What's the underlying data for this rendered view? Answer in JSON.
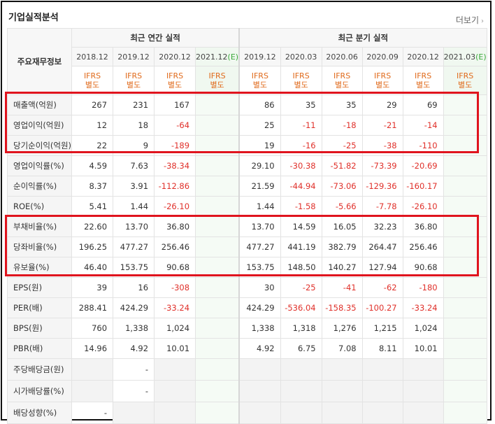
{
  "header": {
    "title": "기업실적분석",
    "more_label": "더보기",
    "more_icon": "chevron-right-icon"
  },
  "table": {
    "row_label_header": "주요재무정보",
    "group_annual": "최근 연간 실적",
    "group_quarterly": "최근 분기 실적",
    "periods": [
      "2018.12",
      "2019.12",
      "2020.12",
      "2021.12(E)",
      "2019.12",
      "2020.03",
      "2020.06",
      "2020.09",
      "2020.12",
      "2021.03(E)"
    ],
    "ifrs_top": "IFRS",
    "ifrs_bottom": "별도",
    "rows": [
      {
        "label": "매출액(억원)",
        "values": [
          "267",
          "231",
          "167",
          "",
          "86",
          "35",
          "35",
          "29",
          "69",
          ""
        ]
      },
      {
        "label": "영업이익(억원)",
        "values": [
          "12",
          "18",
          "-64",
          "",
          "25",
          "-11",
          "-18",
          "-21",
          "-14",
          ""
        ]
      },
      {
        "label": "당기순이익(억원)",
        "values": [
          "22",
          "9",
          "-189",
          "",
          "19",
          "-16",
          "-25",
          "-38",
          "-110",
          ""
        ]
      },
      {
        "label": "영업이익률(%)",
        "values": [
          "4.59",
          "7.63",
          "-38.34",
          "",
          "29.10",
          "-30.38",
          "-51.82",
          "-73.39",
          "-20.69",
          ""
        ]
      },
      {
        "label": "순이익률(%)",
        "values": [
          "8.37",
          "3.91",
          "-112.86",
          "",
          "21.59",
          "-44.94",
          "-73.06",
          "-129.36",
          "-160.17",
          ""
        ]
      },
      {
        "label": "ROE(%)",
        "values": [
          "5.41",
          "1.44",
          "-26.10",
          "",
          "1.44",
          "-1.58",
          "-5.66",
          "-7.78",
          "-26.10",
          ""
        ]
      },
      {
        "label": "부채비율(%)",
        "values": [
          "22.60",
          "13.70",
          "36.80",
          "",
          "13.70",
          "14.59",
          "16.05",
          "32.23",
          "36.80",
          ""
        ]
      },
      {
        "label": "당좌비율(%)",
        "values": [
          "196.25",
          "477.27",
          "256.46",
          "",
          "477.27",
          "441.19",
          "382.79",
          "264.47",
          "256.46",
          ""
        ]
      },
      {
        "label": "유보율(%)",
        "values": [
          "46.40",
          "153.75",
          "90.68",
          "",
          "153.75",
          "148.50",
          "140.27",
          "127.94",
          "90.68",
          ""
        ]
      },
      {
        "label": "EPS(원)",
        "values": [
          "39",
          "16",
          "-308",
          "",
          "30",
          "-25",
          "-41",
          "-62",
          "-180",
          ""
        ]
      },
      {
        "label": "PER(배)",
        "values": [
          "288.41",
          "424.29",
          "-33.24",
          "",
          "424.29",
          "-536.04",
          "-158.35",
          "-100.27",
          "-33.24",
          ""
        ]
      },
      {
        "label": "BPS(원)",
        "values": [
          "760",
          "1,338",
          "1,024",
          "",
          "1,338",
          "1,318",
          "1,276",
          "1,215",
          "1,024",
          ""
        ]
      },
      {
        "label": "PBR(배)",
        "values": [
          "14.96",
          "4.92",
          "10.01",
          "",
          "4.92",
          "6.75",
          "7.08",
          "8.11",
          "10.01",
          ""
        ]
      },
      {
        "label": "주당배당금(원)",
        "values": [
          "",
          "-",
          "",
          "",
          "",
          "",
          "",
          "",
          "",
          ""
        ]
      },
      {
        "label": "시가배당률(%)",
        "values": [
          "",
          "-",
          "",
          "",
          "",
          "",
          "",
          "",
          "",
          ""
        ]
      },
      {
        "label": "배당성향(%)",
        "values": [
          "-",
          "",
          "",
          "",
          "",
          "",
          "",
          "",
          "",
          ""
        ]
      }
    ]
  },
  "colors": {
    "negative": "#e0302a",
    "ifrs": "#e06a1b",
    "estimate": "#3aa83a",
    "highlight_box": "#e0141e"
  }
}
